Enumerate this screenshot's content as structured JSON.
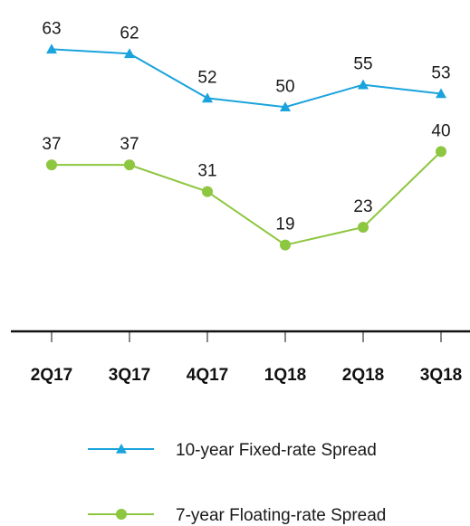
{
  "chart_data": {
    "type": "line",
    "title": "",
    "xlabel": "",
    "ylabel": "",
    "categories": [
      "2Q17",
      "3Q17",
      "4Q17",
      "1Q18",
      "2Q18",
      "3Q18"
    ],
    "ylim": [
      0,
      70
    ],
    "grid": false,
    "legend_position": "bottom",
    "series": [
      {
        "name": "10-year Fixed-rate Spread",
        "values": [
          63,
          62,
          52,
          50,
          55,
          53
        ],
        "color": "#1aa3dc",
        "marker": "triangle"
      },
      {
        "name": "7-year Floating-rate Spread",
        "values": [
          37,
          37,
          31,
          19,
          23,
          40
        ],
        "color": "#8dc63f",
        "marker": "circle"
      }
    ]
  }
}
